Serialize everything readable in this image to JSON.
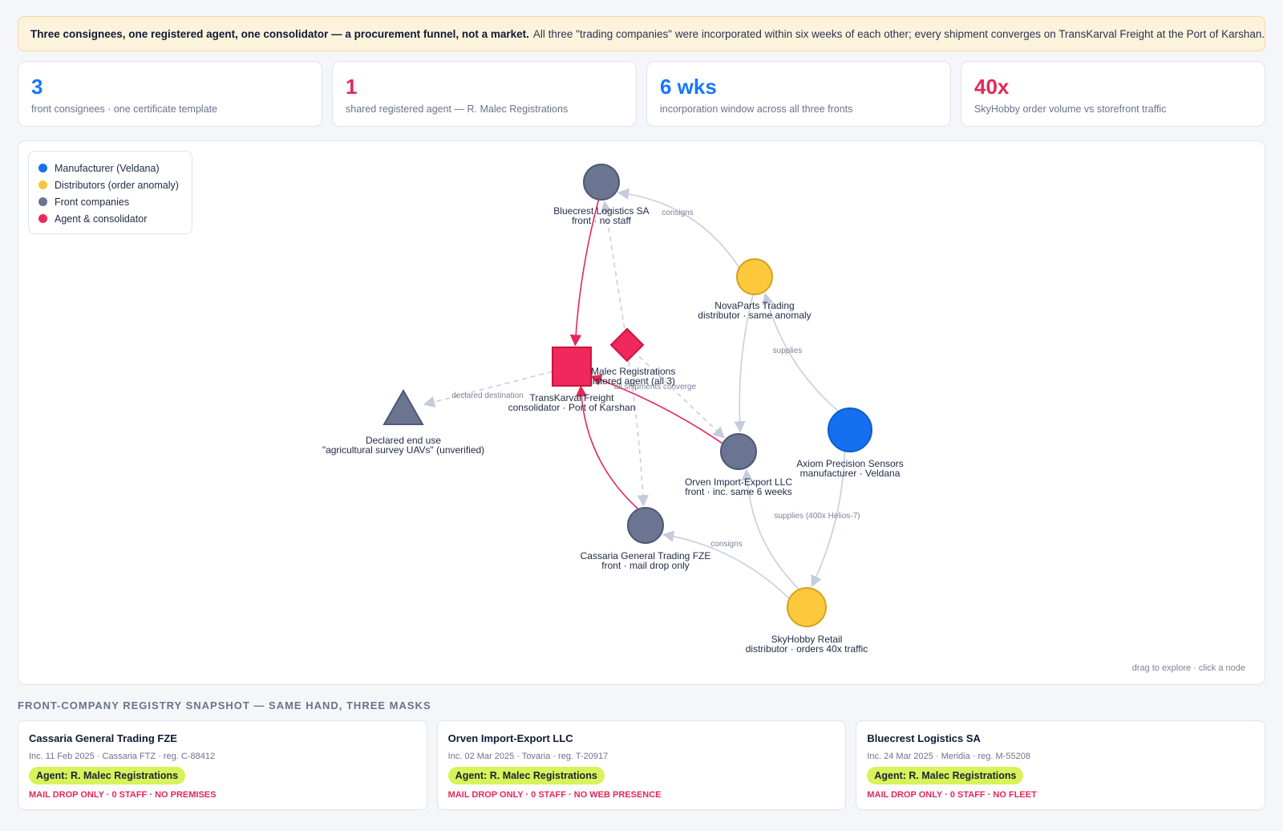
{
  "banner": {
    "bold": "Three consignees, one registered agent, one consolidator — a procurement funnel, not a market.",
    "text": "All three \"trading companies\" were incorporated within six weeks of each other; every shipment converges on TransKarval Freight at the Port of Karshan."
  },
  "stats": [
    {
      "value": "3",
      "label": "front consignees · one certificate template",
      "color": "#1677ff"
    },
    {
      "value": "1",
      "label": "shared registered agent — R. Malec Registrations",
      "color": "#e3285a"
    },
    {
      "value": "6 wks",
      "label": "incorporation window across all three fronts",
      "color": "#1677ff"
    },
    {
      "value": "40x",
      "label": "SkyHobby order volume vs storefront traffic",
      "color": "#e3285a"
    }
  ],
  "legend": [
    {
      "label": "Manufacturer (Veldana)",
      "color": "#1570ef"
    },
    {
      "label": "Distributors (order anomaly)",
      "color": "#f8c53a"
    },
    {
      "label": "Front companies",
      "color": "#6b7490"
    },
    {
      "label": "Agent & consolidator",
      "color": "#f0285c"
    }
  ],
  "graph": {
    "hint": "drag to explore · click a node",
    "nodes": [
      {
        "id": "bluecrest",
        "shape": "circle",
        "kind": "front",
        "name": "Bluecrest Logistics SA",
        "sub": "front · no staff"
      },
      {
        "id": "novaparts",
        "shape": "circle",
        "kind": "distributor",
        "name": "NovaParts Trading",
        "sub": "distributor · same anomaly"
      },
      {
        "id": "malec",
        "shape": "diamond",
        "kind": "agent",
        "name": "R. Malec Registrations",
        "sub": "registered agent (all 3)"
      },
      {
        "id": "transkarval",
        "shape": "square",
        "kind": "agent",
        "name": "TransKarval Freight",
        "sub": "consolidator · Port of Karshan"
      },
      {
        "id": "enduse",
        "shape": "triangle",
        "kind": "front",
        "name": "Declared end use",
        "sub": "\"agricultural survey UAVs\" (unverified)"
      },
      {
        "id": "orven",
        "shape": "circle",
        "kind": "front",
        "name": "Orven Import-Export LLC",
        "sub": "front · inc. same 6 weeks"
      },
      {
        "id": "axiom",
        "shape": "circle",
        "kind": "manufacturer",
        "name": "Axiom Precision Sensors",
        "sub": "manufacturer · Veldana"
      },
      {
        "id": "cassaria",
        "shape": "circle",
        "kind": "front",
        "name": "Cassaria General Trading FZE",
        "sub": "front · mail drop only"
      },
      {
        "id": "skyhobby",
        "shape": "circle",
        "kind": "distributor",
        "name": "SkyHobby Retail",
        "sub": "distributor · orders 40x traffic"
      }
    ],
    "edges": [
      {
        "from": "novaparts",
        "to": "bluecrest",
        "style": "solid-grey",
        "label": "consigns"
      },
      {
        "from": "axiom",
        "to": "novaparts",
        "style": "solid-grey",
        "label": "supplies"
      },
      {
        "from": "novaparts",
        "to": "orven",
        "style": "solid-grey",
        "label": ""
      },
      {
        "from": "axiom",
        "to": "skyhobby",
        "style": "solid-grey",
        "label": "supplies (400x Helios-7)"
      },
      {
        "from": "skyhobby",
        "to": "cassaria",
        "style": "solid-grey",
        "label": "consigns"
      },
      {
        "from": "skyhobby",
        "to": "orven",
        "style": "solid-grey",
        "label": ""
      },
      {
        "from": "bluecrest",
        "to": "transkarval",
        "style": "solid-red",
        "label": ""
      },
      {
        "from": "orven",
        "to": "transkarval",
        "style": "solid-red",
        "label": "all shipments converge"
      },
      {
        "from": "cassaria",
        "to": "transkarval",
        "style": "solid-red",
        "label": ""
      },
      {
        "from": "transkarval",
        "to": "enduse",
        "style": "dashed-grey",
        "label": "declared destination"
      },
      {
        "from": "malec",
        "to": "bluecrest",
        "style": "dashed-grey",
        "label": ""
      },
      {
        "from": "malec",
        "to": "orven",
        "style": "dashed-grey",
        "label": ""
      },
      {
        "from": "malec",
        "to": "cassaria",
        "style": "dashed-grey",
        "label": ""
      }
    ]
  },
  "registry": {
    "title": "FRONT-COMPANY REGISTRY SNAPSHOT — SAME HAND, THREE MASKS",
    "cards": [
      {
        "name": "Cassaria General Trading FZE",
        "meta": "Inc. 11 Feb 2025 · Cassaria FTZ · reg. C-88412",
        "agent": "Agent: R. Malec Registrations",
        "flags": "MAIL DROP ONLY · 0 STAFF · NO PREMISES"
      },
      {
        "name": "Orven Import-Export LLC",
        "meta": "Inc. 02 Mar 2025 · Tovaria · reg. T-20917",
        "agent": "Agent: R. Malec Registrations",
        "flags": "MAIL DROP ONLY · 0 STAFF · NO WEB PRESENCE"
      },
      {
        "name": "Bluecrest Logistics SA",
        "meta": "Inc. 24 Mar 2025 · Meridia · reg. M-55208",
        "agent": "Agent: R. Malec Registrations",
        "flags": "MAIL DROP ONLY · 0 STAFF · NO FLEET"
      }
    ]
  }
}
